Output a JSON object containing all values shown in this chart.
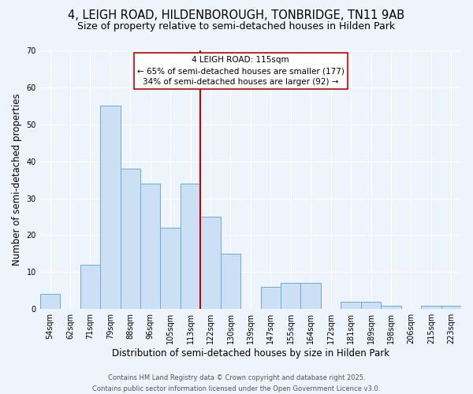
{
  "title": "4, LEIGH ROAD, HILDENBOROUGH, TONBRIDGE, TN11 9AB",
  "subtitle": "Size of property relative to semi-detached houses in Hilden Park",
  "xlabel": "Distribution of semi-detached houses by size in Hilden Park",
  "ylabel": "Number of semi-detached properties",
  "bar_labels": [
    "54sqm",
    "62sqm",
    "71sqm",
    "79sqm",
    "88sqm",
    "96sqm",
    "105sqm",
    "113sqm",
    "122sqm",
    "130sqm",
    "139sqm",
    "147sqm",
    "155sqm",
    "164sqm",
    "172sqm",
    "181sqm",
    "189sqm",
    "198sqm",
    "206sqm",
    "215sqm",
    "223sqm"
  ],
  "bar_heights": [
    4,
    0,
    12,
    55,
    38,
    34,
    22,
    34,
    25,
    15,
    0,
    6,
    7,
    7,
    0,
    2,
    2,
    1,
    0,
    1,
    1
  ],
  "bar_color": "#cce0f5",
  "bar_edge_color": "#6aaed6",
  "vline_x": 7.5,
  "vline_color": "#cc0000",
  "annotation_title": "4 LEIGH ROAD: 115sqm",
  "annotation_line1": "← 65% of semi-detached houses are smaller (177)",
  "annotation_line2": "34% of semi-detached houses are larger (92) →",
  "annotation_box_color": "#ffffff",
  "annotation_box_edge": "#cc0000",
  "ylim": [
    0,
    70
  ],
  "yticks": [
    0,
    10,
    20,
    30,
    40,
    50,
    60,
    70
  ],
  "footer1": "Contains HM Land Registry data © Crown copyright and database right 2025.",
  "footer2": "Contains public sector information licensed under the Open Government Licence v3.0.",
  "bg_color": "#eef4fc",
  "title_fontsize": 10.5,
  "subtitle_fontsize": 9,
  "axis_label_fontsize": 8.5,
  "tick_fontsize": 7,
  "ann_fontsize": 7.5,
  "footer_fontsize": 6
}
